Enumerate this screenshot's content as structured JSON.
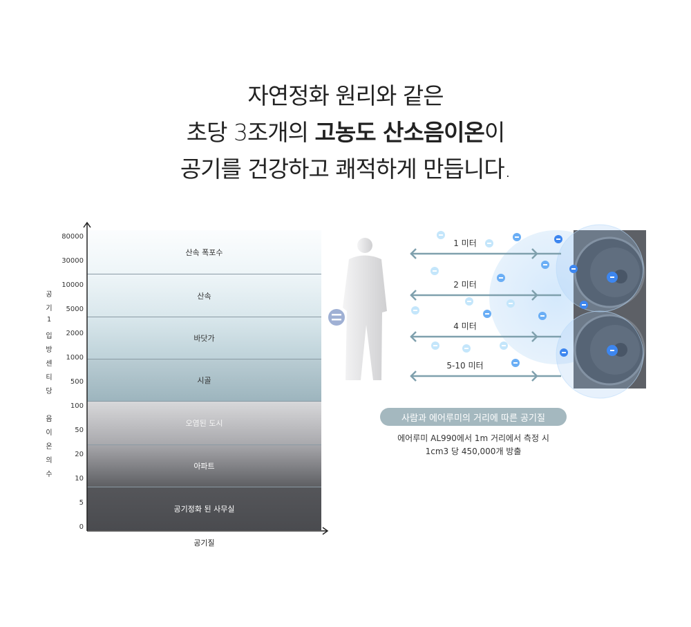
{
  "headline": {
    "line1": "자연정화 원리와 같은",
    "line2_pre": "초당 3조개의 ",
    "line2_bold": "고농도 산소음이온",
    "line2_post": "이",
    "line3": "공기를 건강하고 쾌적하게 만듭니다."
  },
  "chart": {
    "y_axis_label": [
      "공",
      "기",
      "1",
      "입",
      "방",
      "센",
      "티",
      "당",
      "",
      "음",
      "이",
      "온",
      "의",
      "수"
    ],
    "y_ticks": [
      "80000",
      "30000",
      "10000",
      "5000",
      "2000",
      "1000",
      "500",
      "100",
      "50",
      "20",
      "10",
      "5",
      "0"
    ],
    "x_axis_label": "공기질",
    "bands": [
      {
        "label": "산속 폭포수",
        "top_color": "#fbfdfe",
        "bottom_color": "#eef5f8",
        "text_color": "#333"
      },
      {
        "label": "산속",
        "top_color": "#eef5f8",
        "bottom_color": "#d9e7ec",
        "text_color": "#333"
      },
      {
        "label": "바닷가",
        "top_color": "#d9e7ec",
        "bottom_color": "#bed2d9",
        "text_color": "#333"
      },
      {
        "label": "시골",
        "top_color": "#b9ccd3",
        "bottom_color": "#9db5be",
        "text_color": "#333"
      },
      {
        "label": "오염된 도시",
        "top_color": "#d8d8da",
        "bottom_color": "#a9a9ad",
        "text_color": "#f4f4f4"
      },
      {
        "label": "아파트",
        "top_color": "#a6a6aa",
        "bottom_color": "#5e5f63",
        "text_color": "#fff"
      },
      {
        "label": "공기정화 된 사무실",
        "top_color": "#55565a",
        "bottom_color": "#4a4b4f",
        "text_color": "#fff"
      }
    ]
  },
  "distances": [
    "1 미터",
    "2 미터",
    "4 미터",
    "5-10 미터"
  ],
  "pill_label": "사람과 에어루미의 거리에 따른 공기질",
  "caption": {
    "line1": "에어루미 AL990에서 1m 거리에서 측정 시",
    "line2": "1cm3 당 450,000개 방출"
  },
  "colors": {
    "arrow": "#7fa0ad",
    "pill": "#a4b8bf",
    "ion_dark": "#3d86ef",
    "ion_mid": "#6aaef5",
    "ion_light": "#c4e6fb",
    "equals": "#9fb0d4"
  }
}
